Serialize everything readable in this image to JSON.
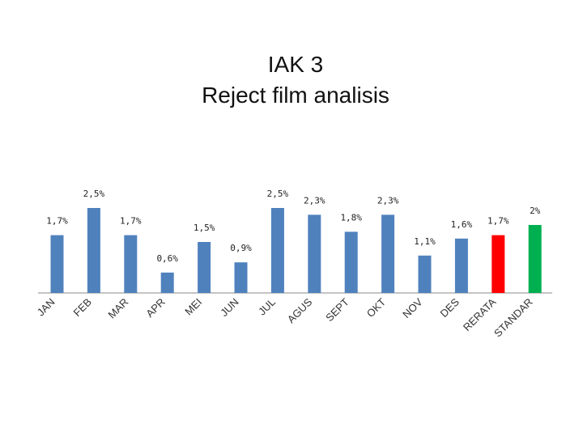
{
  "title_line1": "IAK 3",
  "title_line2": "Reject film analisis",
  "chart_data": {
    "type": "bar",
    "title": "IAK 3 Reject film analisis",
    "categories": [
      "JAN",
      "FEB",
      "MAR",
      "APR",
      "MEI",
      "JUN",
      "JUL",
      "AGUS",
      "SEPT",
      "OKT",
      "NOV",
      "DES",
      "RERATA",
      "STANDAR"
    ],
    "values": [
      1.7,
      2.5,
      1.7,
      0.6,
      1.5,
      0.9,
      2.5,
      2.3,
      1.8,
      2.3,
      1.1,
      1.6,
      1.7,
      2
    ],
    "data_labels": [
      "1,7%",
      "2,5%",
      "1,7%",
      "0,6%",
      "1,5%",
      "0,9%",
      "2,5%",
      "2,3%",
      "1,8%",
      "2,3%",
      "1,1%",
      "1,6%",
      "1,7%",
      "2%"
    ],
    "colors": [
      "#4f81bd",
      "#4f81bd",
      "#4f81bd",
      "#4f81bd",
      "#4f81bd",
      "#4f81bd",
      "#4f81bd",
      "#4f81bd",
      "#4f81bd",
      "#4f81bd",
      "#4f81bd",
      "#4f81bd",
      "#ff0000",
      "#00b050"
    ],
    "ylim": [
      0,
      2.5
    ],
    "grid": false,
    "legend": "none"
  }
}
